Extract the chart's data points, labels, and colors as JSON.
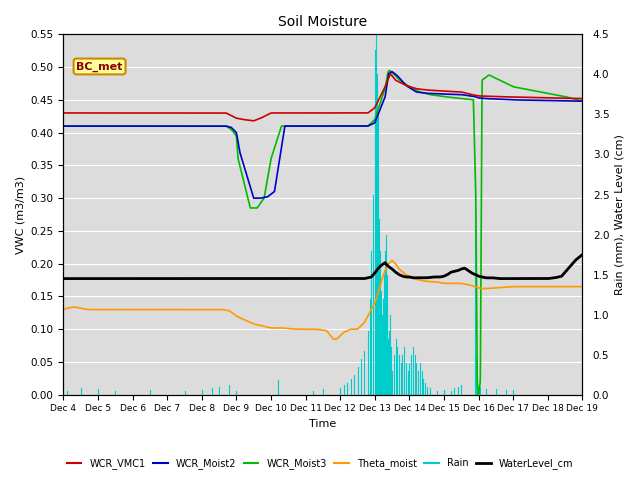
{
  "title": "Soil Moisture",
  "ylabel_left": "VWC (m3/m3)",
  "ylabel_right": "Rain (mm), Water Level (cm)",
  "xlabel": "Time",
  "annotation": "BC_met",
  "ylim_left": [
    0.0,
    0.55
  ],
  "ylim_right": [
    0.0,
    4.5
  ],
  "yticks_left": [
    0.0,
    0.05,
    0.1,
    0.15,
    0.2,
    0.25,
    0.3,
    0.35,
    0.4,
    0.45,
    0.5,
    0.55
  ],
  "yticks_right": [
    0.0,
    0.5,
    1.0,
    1.5,
    2.0,
    2.5,
    3.0,
    3.5,
    4.0,
    4.5
  ],
  "xtick_labels": [
    "Dec 4",
    "Dec 5",
    "Dec 6",
    "Dec 7",
    "Dec 8",
    "Dec 9",
    "Dec 10",
    "Dec 11",
    "Dec 12",
    "Dec 13",
    "Dec 14",
    "Dec 15",
    "Dec 16",
    "Dec 17",
    "Dec 18",
    "Dec 19"
  ],
  "bg_color": "#dcdcdc",
  "face_color": "#ffffff",
  "grid_color": "#ffffff",
  "legend_colors": {
    "WCR_VMC1": "#cc0000",
    "WCR_Moist2": "#0000cc",
    "WCR_Moist3": "#00bb00",
    "Theta_moist": "#ff9900",
    "Rain": "#00cccc",
    "WaterLevel_cm": "#000000"
  }
}
